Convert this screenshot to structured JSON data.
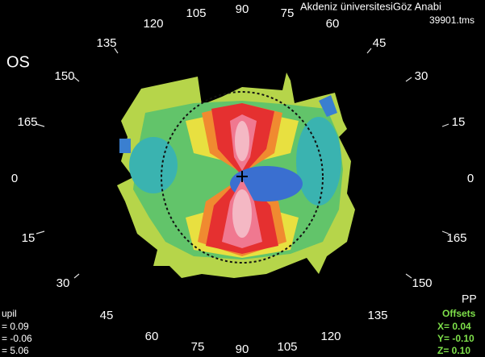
{
  "header": {
    "institution": "Akdeniz üniversitesiGöz Anabi",
    "file": "39901.tms",
    "eye": "OS"
  },
  "axis_labels": [
    "105",
    "90",
    "75",
    "120",
    "60",
    "135",
    "45",
    "150",
    "30",
    "165",
    "15",
    "0",
    "0",
    "15",
    "165",
    "30",
    "150",
    "45",
    "135",
    "60",
    "120",
    "75",
    "90",
    "105"
  ],
  "pupil": {
    "title": "upil",
    "lines": [
      "= 0.09",
      "= -0.06",
      "= 5.06"
    ]
  },
  "offsets": {
    "corner": "PP",
    "title": "Offsets",
    "lines": [
      "X= 0.04",
      "Y= -0.10",
      "Z= 0.10"
    ]
  }
}
